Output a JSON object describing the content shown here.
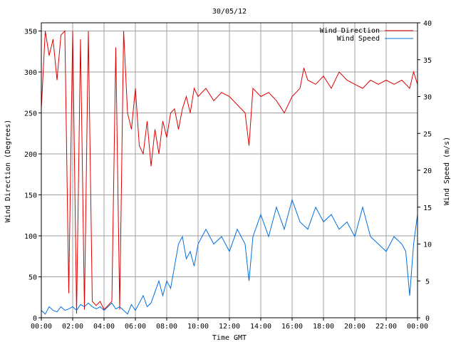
{
  "chart_data": {
    "type": "line",
    "title": "30/05/12",
    "xlabel": "Time GMT",
    "ylabel_left": "Wind Direction (Degrees)",
    "ylabel_right": "Wind Speed (m/s)",
    "x_ticks": [
      "00:00",
      "02:00",
      "04:00",
      "06:00",
      "08:00",
      "10:00",
      "12:00",
      "14:00",
      "16:00",
      "18:00",
      "20:00",
      "22:00",
      "00:00"
    ],
    "x_range_hours": [
      0,
      24
    ],
    "y_left": {
      "range": [
        0,
        360
      ],
      "ticks": [
        0,
        50,
        100,
        150,
        200,
        250,
        300,
        350
      ]
    },
    "y_right": {
      "range": [
        0,
        40
      ],
      "ticks": [
        0,
        5,
        10,
        15,
        20,
        25,
        30,
        35,
        40
      ]
    },
    "grid": true,
    "legend_position": "top-right",
    "series": [
      {
        "name": "Wind Direction",
        "axis": "left",
        "color": "#e00000",
        "x_hours": [
          0,
          0.25,
          0.5,
          0.75,
          1,
          1.25,
          1.5,
          1.75,
          2,
          2.25,
          2.5,
          2.75,
          3,
          3.25,
          3.5,
          3.75,
          4,
          4.25,
          4.5,
          4.75,
          5,
          5.25,
          5.5,
          5.75,
          6,
          6.25,
          6.5,
          6.75,
          7,
          7.25,
          7.5,
          7.75,
          8,
          8.25,
          8.5,
          8.75,
          9,
          9.25,
          9.5,
          9.75,
          10,
          10.5,
          11,
          11.5,
          12,
          12.5,
          13,
          13.25,
          13.5,
          14,
          14.5,
          15,
          15.5,
          16,
          16.5,
          16.75,
          17,
          17.5,
          18,
          18.5,
          19,
          19.5,
          20,
          20.5,
          21,
          21.5,
          22,
          22.5,
          23,
          23.5,
          23.75,
          24
        ],
        "values": [
          255,
          350,
          320,
          340,
          290,
          345,
          350,
          30,
          350,
          5,
          340,
          10,
          350,
          20,
          15,
          20,
          10,
          15,
          20,
          330,
          10,
          350,
          250,
          230,
          280,
          210,
          200,
          240,
          185,
          230,
          200,
          240,
          220,
          250,
          255,
          230,
          255,
          270,
          250,
          280,
          270,
          280,
          265,
          275,
          270,
          260,
          250,
          210,
          280,
          270,
          275,
          265,
          250,
          270,
          280,
          305,
          290,
          285,
          295,
          280,
          300,
          290,
          285,
          280,
          290,
          285,
          290,
          285,
          290,
          280,
          300,
          285
        ]
      },
      {
        "name": "Wind Speed",
        "axis": "right",
        "color": "#0070e0",
        "x_hours": [
          0,
          0.25,
          0.5,
          0.75,
          1,
          1.25,
          1.5,
          1.75,
          2,
          2.25,
          2.5,
          2.75,
          3,
          3.25,
          3.5,
          3.75,
          4,
          4.25,
          4.5,
          4.75,
          5,
          5.25,
          5.5,
          5.75,
          6,
          6.25,
          6.5,
          6.75,
          7,
          7.25,
          7.5,
          7.75,
          8,
          8.25,
          8.5,
          8.75,
          9,
          9.25,
          9.5,
          9.75,
          10,
          10.5,
          11,
          11.5,
          12,
          12.5,
          13,
          13.25,
          13.5,
          14,
          14.5,
          15,
          15.5,
          16,
          16.5,
          17,
          17.5,
          18,
          18.5,
          19,
          19.5,
          20,
          20.5,
          21,
          21.5,
          22,
          22.5,
          23,
          23.25,
          23.5,
          23.75,
          24
        ],
        "values": [
          1,
          0.5,
          1.5,
          1,
          0.8,
          1.5,
          1,
          1.2,
          1.5,
          1,
          1.8,
          1.5,
          2,
          1.5,
          1.2,
          1.5,
          1,
          1.5,
          2,
          1.2,
          1.5,
          1,
          0.5,
          1.8,
          1,
          2,
          3,
          1.5,
          2,
          3.5,
          5,
          3,
          5,
          4,
          7,
          10,
          11,
          8,
          9,
          7,
          10,
          12,
          10,
          11,
          9,
          12,
          10,
          5,
          11,
          14,
          11,
          15,
          12,
          16,
          13,
          12,
          15,
          13,
          14,
          12,
          13,
          11,
          15,
          11,
          10,
          9,
          11,
          10,
          9,
          3,
          10,
          14
        ]
      }
    ]
  }
}
